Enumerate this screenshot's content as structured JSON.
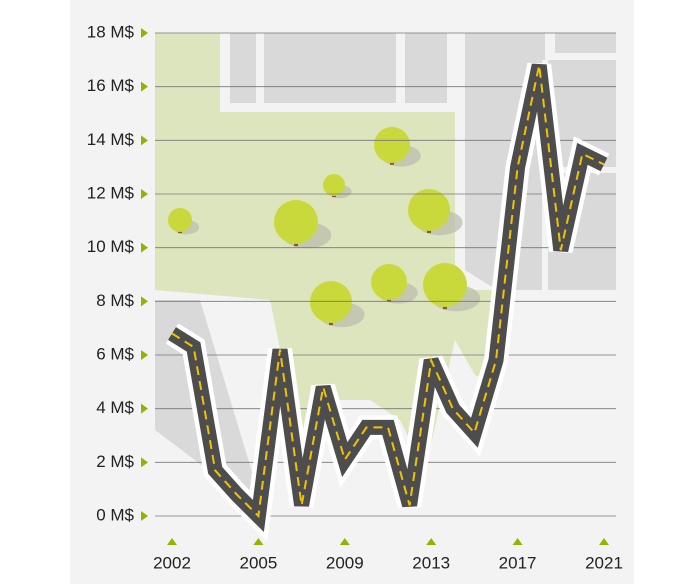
{
  "chart_data": {
    "type": "line",
    "categories": [
      "2002",
      null,
      null,
      null,
      "2005",
      null,
      null,
      null,
      "2009",
      null,
      null,
      null,
      "2013",
      null,
      null,
      null,
      "2017",
      null,
      null,
      null,
      "2021"
    ],
    "values": [
      6.8,
      6.3,
      1.7,
      0.8,
      0,
      6.2,
      0.4,
      4.8,
      2.1,
      3.3,
      3.3,
      0.4,
      5.8,
      4.0,
      3.1,
      5.8,
      13.0,
      16.8,
      9.9,
      13.5,
      13.1
    ],
    "ylim": [
      0,
      18
    ],
    "yticks": [
      {
        "value": 0,
        "label": "0 M$"
      },
      {
        "value": 2,
        "label": "2 M$"
      },
      {
        "value": 4,
        "label": "4 M$"
      },
      {
        "value": 6,
        "label": "6 M$"
      },
      {
        "value": 8,
        "label": "8 M$"
      },
      {
        "value": 10,
        "label": "10 M$"
      },
      {
        "value": 12,
        "label": "12 M$"
      },
      {
        "value": 14,
        "label": "14 M$"
      },
      {
        "value": 16,
        "label": "16 M$"
      },
      {
        "value": 18,
        "label": "18 M$"
      }
    ],
    "grid": true,
    "color": "#4d4d4d"
  }
}
